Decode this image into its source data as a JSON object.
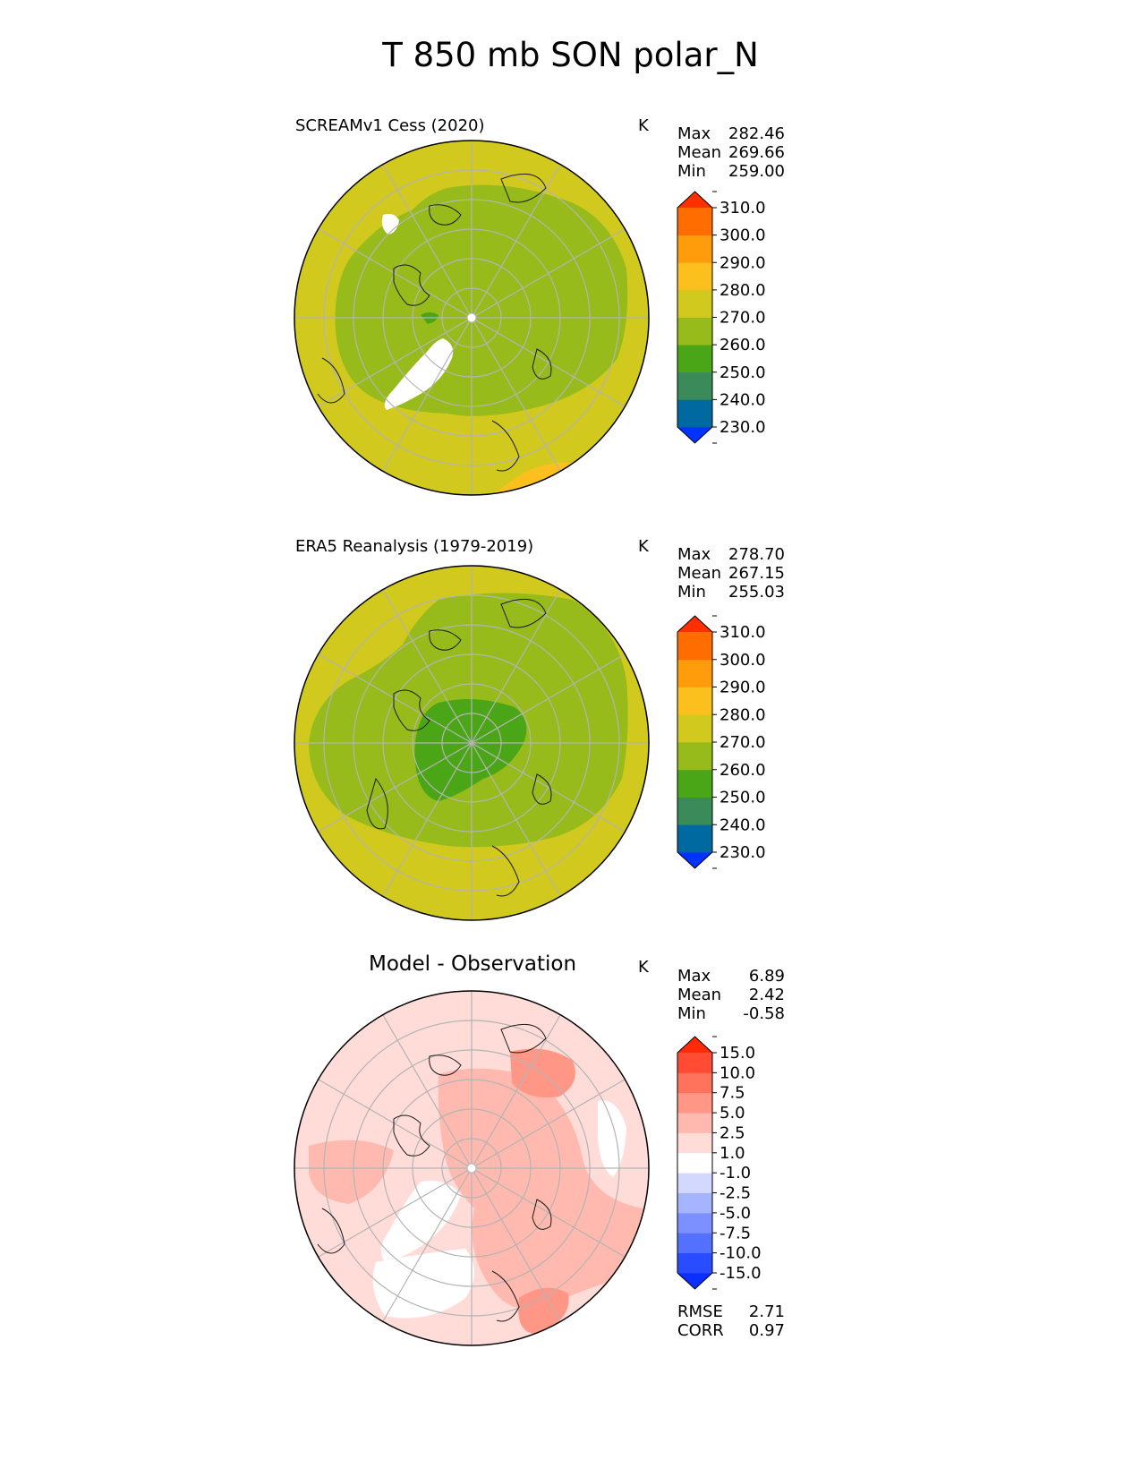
{
  "title": "T 850 mb SON polar_N",
  "panels": [
    {
      "title": "SCREAMv1 Cess (2020)",
      "units": "K",
      "stats": [
        {
          "label": "Max",
          "value": "282.46"
        },
        {
          "label": "Mean",
          "value": "269.66"
        },
        {
          "label": "Min",
          "value": "259.00"
        }
      ]
    },
    {
      "title": "ERA5 Reanalysis (1979-2019)",
      "units": "K",
      "stats": [
        {
          "label": "Max",
          "value": "278.70"
        },
        {
          "label": "Mean",
          "value": "267.15"
        },
        {
          "label": "Min",
          "value": "255.03"
        }
      ]
    },
    {
      "title": "Model - Observation",
      "units": "K",
      "stats": [
        {
          "label": "Max",
          "value": "6.89"
        },
        {
          "label": "Mean",
          "value": "2.42"
        },
        {
          "label": "Min",
          "value": "-0.58"
        }
      ],
      "footer_stats": [
        {
          "label": "RMSE",
          "value": "2.71"
        },
        {
          "label": "CORR",
          "value": "0.97"
        }
      ]
    }
  ],
  "chart_data": [
    {
      "type": "heatmap",
      "projection": "north-polar-stereographic",
      "title": "SCREAMv1 Cess (2020)",
      "units": "K",
      "colorbar": {
        "ticks": [
          "230.0",
          "240.0",
          "250.0",
          "260.0",
          "270.0",
          "280.0",
          "290.0",
          "300.0",
          "310.0"
        ],
        "levels": [
          230,
          240,
          250,
          260,
          270,
          280,
          290,
          300,
          310
        ],
        "colors": [
          "#0033ff",
          "#0069a0",
          "#3b8a5a",
          "#4aa517",
          "#97bb1b",
          "#d1c91e",
          "#fbc01e",
          "#ff9c0c",
          "#ff6c00",
          "#ff2f00"
        ],
        "extend": "both"
      },
      "field": {
        "outer": "270-280",
        "inner": "260-270",
        "south_edge": "280-290"
      }
    },
    {
      "type": "heatmap",
      "projection": "north-polar-stereographic",
      "title": "ERA5 Reanalysis (1979-2019)",
      "units": "K",
      "colorbar": {
        "ticks": [
          "230.0",
          "240.0",
          "250.0",
          "260.0",
          "270.0",
          "280.0",
          "290.0",
          "300.0",
          "310.0"
        ],
        "levels": [
          230,
          240,
          250,
          260,
          270,
          280,
          290,
          300,
          310
        ],
        "colors": [
          "#0033ff",
          "#0069a0",
          "#3b8a5a",
          "#4aa517",
          "#97bb1b",
          "#d1c91e",
          "#fbc01e",
          "#ff9c0c",
          "#ff6c00",
          "#ff2f00"
        ],
        "extend": "both"
      },
      "field": {
        "outer": "270-280",
        "inner": "260-270",
        "center": "250-260"
      }
    },
    {
      "type": "heatmap",
      "projection": "north-polar-stereographic",
      "title": "Model - Observation",
      "units": "K",
      "colorbar": {
        "ticks": [
          "-15.0",
          "-10.0",
          "-7.5",
          "-5.0",
          "-2.5",
          "-1.0",
          "1.0",
          "2.5",
          "5.0",
          "7.5",
          "10.0",
          "15.0"
        ],
        "levels": [
          -15,
          -10,
          -7.5,
          -5,
          -2.5,
          -1,
          1,
          2.5,
          5,
          7.5,
          10,
          15
        ],
        "colors": [
          "#0a2fff",
          "#2a4cff",
          "#5470ff",
          "#7c90ff",
          "#a6b3ff",
          "#d2d8ff",
          "#ffffff",
          "#ffdcd8",
          "#ffb9ae",
          "#ff9686",
          "#ff725c",
          "#ff4c32",
          "#ff2a0a"
        ],
        "extend": "both"
      },
      "field": {
        "dominant": "1.0-2.5",
        "secondary": "2.5-5.0",
        "patches": "5.0-7.5"
      }
    }
  ]
}
